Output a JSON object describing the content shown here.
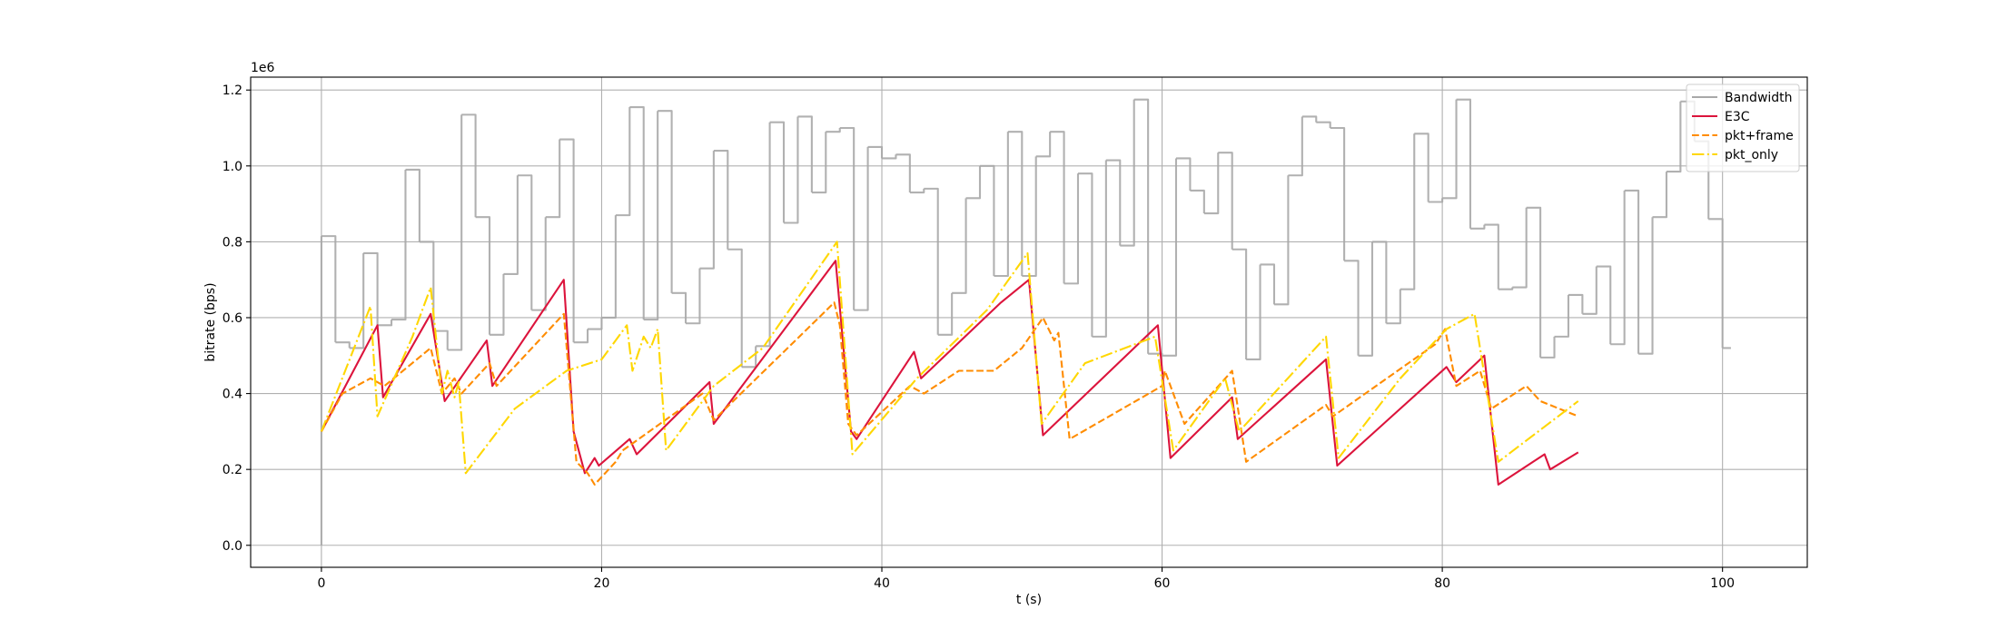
{
  "chart_data": {
    "type": "line",
    "xlabel": "t (s)",
    "ylabel": "bitrate (bps)",
    "y_offset_label": "1e6",
    "xlim": [
      -5.05,
      106.05
    ],
    "ylim": [
      -0.058,
      1.234
    ],
    "xticks": [
      0,
      20,
      40,
      60,
      80,
      100
    ],
    "yticks": [
      {
        "value": 0,
        "label": "0.0"
      },
      0.2,
      0.4,
      0.6,
      0.8,
      {
        "value": 1,
        "label": "1.0"
      },
      1.2
    ],
    "grid": true,
    "legend": "upper right",
    "series": [
      {
        "name": "Bandwidth",
        "color": "#a9a9a9",
        "linestyle": "solid",
        "drawstyle": "steps-post",
        "x": [
          0,
          0,
          1,
          2,
          3,
          4,
          5,
          6,
          7,
          8,
          9,
          10,
          11,
          12,
          13,
          14,
          15,
          16,
          17,
          18,
          19,
          20,
          21,
          22,
          23,
          24,
          25,
          26,
          27,
          28,
          29,
          30,
          31,
          32,
          33,
          34,
          35,
          36,
          37,
          38,
          39,
          40,
          41,
          42,
          43,
          44,
          45,
          46,
          47,
          48,
          49,
          50,
          51,
          52,
          53,
          54,
          55,
          56,
          57,
          58,
          59,
          60,
          61,
          62,
          63,
          64,
          65,
          66,
          67,
          68,
          69,
          70,
          71,
          72,
          73,
          74,
          75,
          76,
          77,
          78,
          79,
          80,
          81,
          82,
          83,
          84,
          85,
          86,
          87,
          88,
          89,
          90,
          91,
          92,
          93,
          94,
          95,
          96,
          97,
          98,
          99,
          100,
          100.6
        ],
        "values": [
          0,
          0.815,
          0.535,
          0.52,
          0.77,
          0.58,
          0.595,
          0.99,
          0.8,
          0.565,
          0.515,
          1.135,
          0.865,
          0.555,
          0.715,
          0.975,
          0.62,
          0.865,
          1.07,
          0.535,
          0.57,
          0.6,
          0.87,
          1.155,
          0.595,
          1.145,
          0.665,
          0.585,
          0.73,
          1.04,
          0.78,
          0.47,
          0.525,
          1.115,
          0.85,
          1.13,
          0.93,
          1.09,
          1.1,
          0.62,
          1.05,
          1.02,
          1.03,
          0.93,
          0.94,
          0.555,
          0.665,
          0.915,
          1.0,
          0.71,
          1.09,
          0.71,
          1.025,
          1.09,
          0.69,
          0.98,
          0.55,
          1.015,
          0.79,
          1.175,
          0.505,
          0.5,
          1.02,
          0.935,
          0.875,
          1.035,
          0.78,
          0.49,
          0.74,
          0.635,
          0.975,
          1.13,
          1.115,
          1.1,
          0.75,
          0.5,
          0.8,
          0.585,
          0.675,
          1.085,
          0.905,
          0.915,
          1.175,
          0.835,
          0.845,
          0.675,
          0.68,
          0.89,
          0.495,
          0.55,
          0.66,
          0.61,
          0.735,
          0.53,
          0.935,
          0.505,
          0.865,
          0.985,
          1.17,
          1.065,
          0.86,
          0.52,
          0.52
        ]
      },
      {
        "name": "E3C",
        "color": "#dc143c",
        "linestyle": "solid",
        "drawstyle": "default",
        "x": [
          0,
          4,
          4.4,
          7.8,
          8.8,
          11.8,
          12.2,
          17.3,
          18,
          18.8,
          19.5,
          19.8,
          22,
          22.5,
          27.7,
          28,
          36.7,
          37.8,
          38.2,
          42.3,
          42.8,
          48.5,
          50.5,
          51.5,
          59.7,
          60.6,
          65,
          65.4,
          71.7,
          72.5,
          80.3,
          81,
          83,
          84,
          87.3,
          87.7,
          89.7
        ],
        "values": [
          0.3,
          0.58,
          0.39,
          0.61,
          0.38,
          0.54,
          0.42,
          0.7,
          0.3,
          0.19,
          0.23,
          0.21,
          0.28,
          0.24,
          0.43,
          0.32,
          0.75,
          0.3,
          0.28,
          0.51,
          0.44,
          0.64,
          0.7,
          0.29,
          0.58,
          0.23,
          0.39,
          0.28,
          0.49,
          0.21,
          0.47,
          0.43,
          0.5,
          0.16,
          0.24,
          0.2,
          0.245
        ]
      },
      {
        "name": "pkt+frame",
        "color": "#ff8c00",
        "linestyle": "dashed",
        "drawstyle": "default",
        "x": [
          0,
          1.5,
          3.5,
          4.5,
          7.8,
          8.6,
          9.5,
          10,
          12,
          12.5,
          17.3,
          18.2,
          19,
          19.5,
          21,
          21.5,
          27.2,
          28,
          35.5,
          36.6,
          37,
          37.6,
          38.2,
          42,
          43,
          45.5,
          48,
          50,
          51.5,
          52.3,
          52.6,
          53.4,
          60,
          60.2,
          61.6,
          65,
          66,
          71.7,
          72.2,
          79.5,
          80.2,
          81,
          82.7,
          83.5,
          86,
          87,
          89.7
        ],
        "values": [
          0.3,
          0.4,
          0.44,
          0.42,
          0.52,
          0.4,
          0.44,
          0.4,
          0.48,
          0.42,
          0.61,
          0.22,
          0.19,
          0.16,
          0.22,
          0.25,
          0.4,
          0.33,
          0.6,
          0.64,
          0.58,
          0.32,
          0.29,
          0.42,
          0.4,
          0.46,
          0.46,
          0.52,
          0.6,
          0.54,
          0.56,
          0.28,
          0.42,
          0.46,
          0.32,
          0.46,
          0.22,
          0.37,
          0.34,
          0.53,
          0.57,
          0.42,
          0.46,
          0.36,
          0.42,
          0.38,
          0.34
        ]
      },
      {
        "name": "pkt_only",
        "color": "#ffd700",
        "linestyle": "dashdot",
        "drawstyle": "default",
        "x": [
          0,
          3.5,
          4,
          6.5,
          7.8,
          8.6,
          9,
          9.5,
          9.8,
          10.3,
          13.8,
          17.5,
          20,
          21.8,
          22.2,
          23,
          23.5,
          24,
          24.6,
          28,
          31.5,
          36.8,
          37.9,
          42.5,
          47.5,
          50.4,
          51.4,
          54.5,
          59.5,
          60.8,
          64.5,
          65.5,
          71.7,
          72.6,
          77,
          80.3,
          82.3,
          84,
          89.7
        ],
        "values": [
          0.3,
          0.63,
          0.34,
          0.55,
          0.68,
          0.4,
          0.46,
          0.39,
          0.43,
          0.19,
          0.36,
          0.46,
          0.49,
          0.58,
          0.46,
          0.55,
          0.52,
          0.57,
          0.25,
          0.42,
          0.52,
          0.8,
          0.24,
          0.44,
          0.62,
          0.77,
          0.32,
          0.48,
          0.55,
          0.25,
          0.44,
          0.3,
          0.55,
          0.23,
          0.44,
          0.57,
          0.61,
          0.22,
          0.38
        ]
      }
    ]
  }
}
